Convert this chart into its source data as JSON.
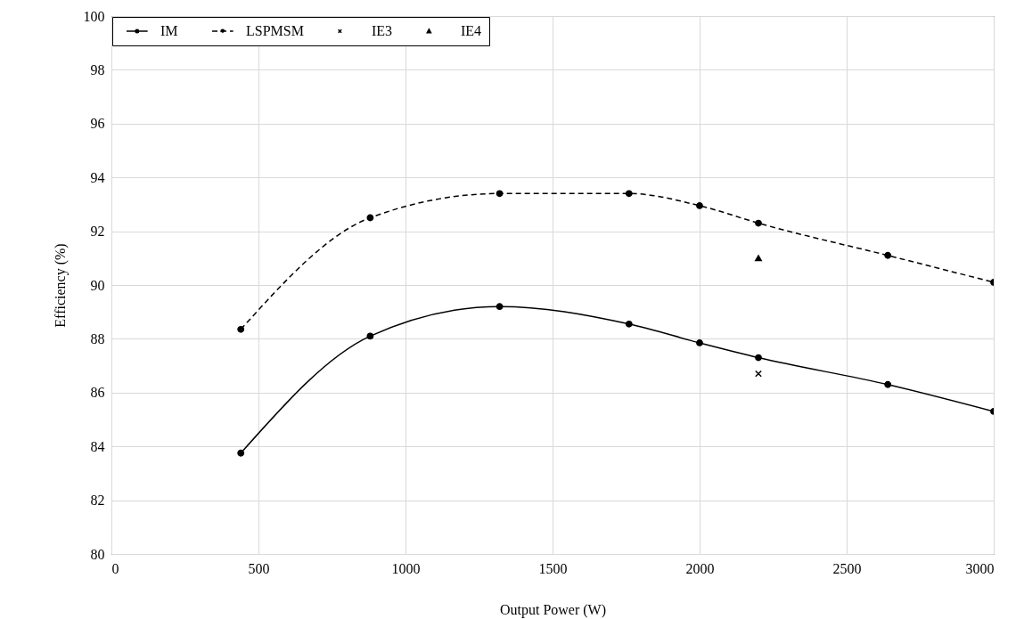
{
  "chart_data": {
    "type": "line",
    "xlabel": "Output Power (W)",
    "ylabel": "Efficiency (%)",
    "xlim": [
      0,
      3000
    ],
    "ylim": [
      80,
      100
    ],
    "xticks": [
      0,
      500,
      1000,
      1500,
      2000,
      2500,
      3000
    ],
    "yticks": [
      80,
      82,
      84,
      86,
      88,
      90,
      92,
      94,
      96,
      98,
      100
    ],
    "grid": true,
    "legend": "top left",
    "x": [
      440,
      880,
      1320,
      1760,
      2000,
      2200,
      2640,
      3000
    ],
    "series": [
      {
        "name": "IM",
        "color": "#000000",
        "marker": "circle",
        "line_style": "solid",
        "values": [
          83.75,
          88.1,
          89.2,
          88.55,
          87.85,
          87.3,
          86.3,
          85.3
        ]
      },
      {
        "name": "LSPMSM",
        "color": "#000000",
        "marker": "circle",
        "line_style": "dashed",
        "values": [
          88.35,
          92.5,
          93.4,
          93.4,
          92.95,
          92.3,
          91.1,
          90.1
        ]
      },
      {
        "name": "IE3",
        "type": "scatter",
        "color": "#000000",
        "marker": "cross",
        "x": [
          2200
        ],
        "values": [
          86.7
        ]
      },
      {
        "name": "IE4",
        "type": "scatter",
        "color": "#000000",
        "marker": "triangle",
        "x": [
          2200
        ],
        "values": [
          91.0
        ]
      }
    ]
  }
}
